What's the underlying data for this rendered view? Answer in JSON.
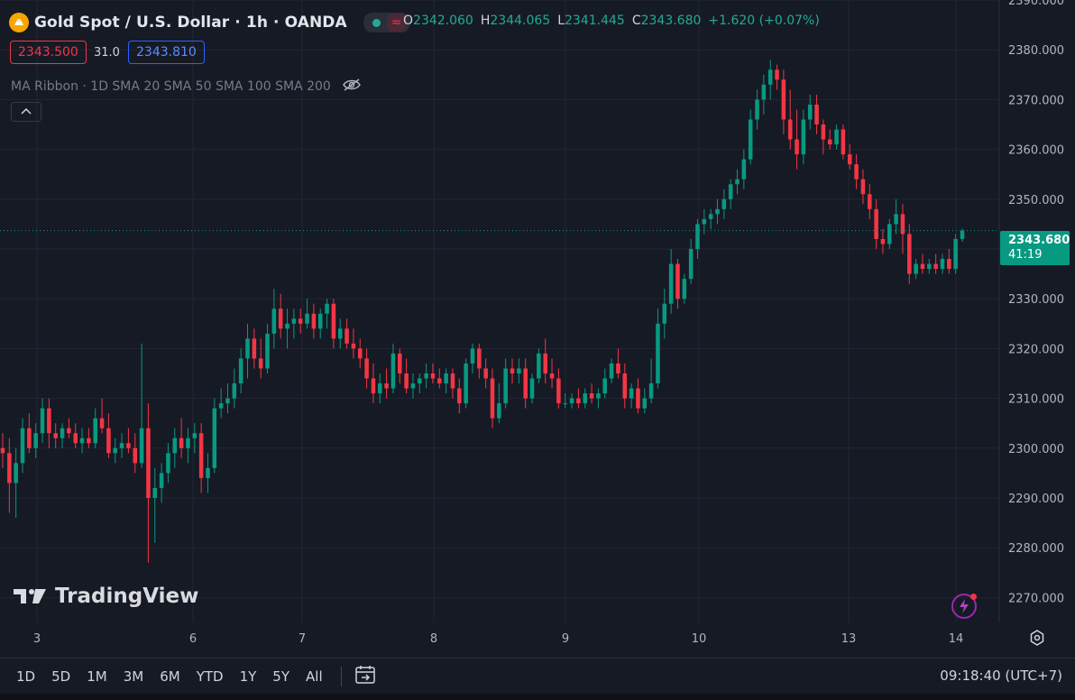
{
  "header": {
    "title": "Gold Spot / U.S. Dollar · 1h · OANDA",
    "ohlc": [
      {
        "k": "O",
        "v": "2342.060"
      },
      {
        "k": "H",
        "v": "2344.065"
      },
      {
        "k": "L",
        "v": "2341.445"
      },
      {
        "k": "C",
        "v": "2343.680"
      }
    ],
    "change": "+1.620 (+0.07%)",
    "sell_price": "2343.500",
    "spread": "31.0",
    "buy_price": "2343.810",
    "indicator": "MA Ribbon · 1D SMA 20 SMA 50 SMA 100 SMA 200"
  },
  "last_price": {
    "value": "2343.680",
    "countdown": "41:19",
    "color": "#089981"
  },
  "watermark": "TradingView",
  "toolbar": {
    "ranges": [
      "1D",
      "5D",
      "1M",
      "3M",
      "6M",
      "YTD",
      "1Y",
      "5Y",
      "All"
    ],
    "clock": "09:18:40 (UTC+7)"
  },
  "colors": {
    "up": "#089981",
    "down": "#f23645",
    "background": "#161a25",
    "grid": "#232632"
  },
  "icons": [
    "gold-coin-icon",
    "market-status-dot-icon",
    "wave-icon",
    "eye-off-icon",
    "chevron-up-icon",
    "tradingview-logo-icon",
    "lightning-icon",
    "settings-icon",
    "calendar-goto-icon"
  ],
  "chart_data": {
    "type": "candlestick",
    "y_range": [
      2265,
      2390
    ],
    "y_ticks": [
      "2270.000",
      "2280.000",
      "2290.000",
      "2300.000",
      "2310.000",
      "2320.000",
      "2330.000",
      "2340.000",
      "2350.000",
      "2360.000",
      "2370.000",
      "2380.000",
      "2390.000"
    ],
    "x_ticks": [
      "3",
      "6",
      "7",
      "8",
      "9",
      "10",
      "13",
      "14"
    ],
    "candles": [
      {
        "o": 2300,
        "h": 2303,
        "l": 2296,
        "c": 2299
      },
      {
        "o": 2299,
        "h": 2302,
        "l": 2287,
        "c": 2293
      },
      {
        "o": 2293,
        "h": 2300,
        "l": 2286,
        "c": 2297
      },
      {
        "o": 2297,
        "h": 2306,
        "l": 2295,
        "c": 2304
      },
      {
        "o": 2304,
        "h": 2307,
        "l": 2299,
        "c": 2300
      },
      {
        "o": 2300,
        "h": 2305,
        "l": 2298,
        "c": 2303
      },
      {
        "o": 2303,
        "h": 2310,
        "l": 2301,
        "c": 2308
      },
      {
        "o": 2308,
        "h": 2310,
        "l": 2300,
        "c": 2303
      },
      {
        "o": 2303,
        "h": 2305,
        "l": 2300,
        "c": 2302
      },
      {
        "o": 2302,
        "h": 2305,
        "l": 2300,
        "c": 2304
      },
      {
        "o": 2304,
        "h": 2306,
        "l": 2302,
        "c": 2303
      },
      {
        "o": 2303,
        "h": 2305,
        "l": 2300,
        "c": 2301
      },
      {
        "o": 2301,
        "h": 2304,
        "l": 2299,
        "c": 2302
      },
      {
        "o": 2302,
        "h": 2304,
        "l": 2300,
        "c": 2301
      },
      {
        "o": 2301,
        "h": 2308,
        "l": 2300,
        "c": 2306
      },
      {
        "o": 2306,
        "h": 2310,
        "l": 2303,
        "c": 2304
      },
      {
        "o": 2304,
        "h": 2307,
        "l": 2298,
        "c": 2299
      },
      {
        "o": 2299,
        "h": 2302,
        "l": 2297,
        "c": 2300
      },
      {
        "o": 2300,
        "h": 2303,
        "l": 2298,
        "c": 2301
      },
      {
        "o": 2301,
        "h": 2304,
        "l": 2299,
        "c": 2300
      },
      {
        "o": 2300,
        "h": 2303,
        "l": 2295,
        "c": 2297
      },
      {
        "o": 2297,
        "h": 2321,
        "l": 2296,
        "c": 2304
      },
      {
        "o": 2304,
        "h": 2309,
        "l": 2277,
        "c": 2290
      },
      {
        "o": 2290,
        "h": 2296,
        "l": 2281,
        "c": 2292
      },
      {
        "o": 2292,
        "h": 2297,
        "l": 2289,
        "c": 2295
      },
      {
        "o": 2295,
        "h": 2301,
        "l": 2293,
        "c": 2299
      },
      {
        "o": 2299,
        "h": 2304,
        "l": 2296,
        "c": 2302
      },
      {
        "o": 2302,
        "h": 2306,
        "l": 2298,
        "c": 2300
      },
      {
        "o": 2300,
        "h": 2304,
        "l": 2297,
        "c": 2302
      },
      {
        "o": 2302,
        "h": 2305,
        "l": 2299,
        "c": 2303
      },
      {
        "o": 2303,
        "h": 2305,
        "l": 2291,
        "c": 2294
      },
      {
        "o": 2294,
        "h": 2299,
        "l": 2291,
        "c": 2296
      },
      {
        "o": 2296,
        "h": 2310,
        "l": 2295,
        "c": 2308
      },
      {
        "o": 2308,
        "h": 2312,
        "l": 2306,
        "c": 2309
      },
      {
        "o": 2309,
        "h": 2313,
        "l": 2307,
        "c": 2310
      },
      {
        "o": 2310,
        "h": 2316,
        "l": 2308,
        "c": 2313
      },
      {
        "o": 2313,
        "h": 2320,
        "l": 2311,
        "c": 2318
      },
      {
        "o": 2318,
        "h": 2325,
        "l": 2314,
        "c": 2322
      },
      {
        "o": 2322,
        "h": 2324,
        "l": 2316,
        "c": 2318
      },
      {
        "o": 2318,
        "h": 2322,
        "l": 2314,
        "c": 2316
      },
      {
        "o": 2316,
        "h": 2325,
        "l": 2315,
        "c": 2323
      },
      {
        "o": 2323,
        "h": 2332,
        "l": 2320,
        "c": 2328
      },
      {
        "o": 2328,
        "h": 2331,
        "l": 2322,
        "c": 2324
      },
      {
        "o": 2324,
        "h": 2328,
        "l": 2320,
        "c": 2325
      },
      {
        "o": 2325,
        "h": 2328,
        "l": 2322,
        "c": 2326
      },
      {
        "o": 2326,
        "h": 2328,
        "l": 2323,
        "c": 2325
      },
      {
        "o": 2325,
        "h": 2330,
        "l": 2324,
        "c": 2327
      },
      {
        "o": 2327,
        "h": 2329,
        "l": 2322,
        "c": 2324
      },
      {
        "o": 2324,
        "h": 2328,
        "l": 2322,
        "c": 2327
      },
      {
        "o": 2327,
        "h": 2330,
        "l": 2324,
        "c": 2329
      },
      {
        "o": 2329,
        "h": 2330,
        "l": 2320,
        "c": 2322
      },
      {
        "o": 2322,
        "h": 2326,
        "l": 2320,
        "c": 2324
      },
      {
        "o": 2324,
        "h": 2326,
        "l": 2320,
        "c": 2321
      },
      {
        "o": 2321,
        "h": 2324,
        "l": 2318,
        "c": 2320
      },
      {
        "o": 2320,
        "h": 2322,
        "l": 2316,
        "c": 2318
      },
      {
        "o": 2318,
        "h": 2320,
        "l": 2312,
        "c": 2314
      },
      {
        "o": 2314,
        "h": 2317,
        "l": 2309,
        "c": 2311
      },
      {
        "o": 2311,
        "h": 2315,
        "l": 2309,
        "c": 2313
      },
      {
        "o": 2313,
        "h": 2316,
        "l": 2310,
        "c": 2312
      },
      {
        "o": 2312,
        "h": 2321,
        "l": 2311,
        "c": 2319
      },
      {
        "o": 2319,
        "h": 2320,
        "l": 2313,
        "c": 2315
      },
      {
        "o": 2315,
        "h": 2318,
        "l": 2311,
        "c": 2312
      },
      {
        "o": 2312,
        "h": 2315,
        "l": 2310,
        "c": 2313
      },
      {
        "o": 2313,
        "h": 2315,
        "l": 2311,
        "c": 2314
      },
      {
        "o": 2314,
        "h": 2317,
        "l": 2312,
        "c": 2315
      },
      {
        "o": 2315,
        "h": 2317,
        "l": 2313,
        "c": 2314
      },
      {
        "o": 2314,
        "h": 2316,
        "l": 2312,
        "c": 2313
      },
      {
        "o": 2313,
        "h": 2316,
        "l": 2311,
        "c": 2315
      },
      {
        "o": 2315,
        "h": 2316,
        "l": 2310,
        "c": 2312
      },
      {
        "o": 2312,
        "h": 2314,
        "l": 2307,
        "c": 2309
      },
      {
        "o": 2309,
        "h": 2318,
        "l": 2308,
        "c": 2317
      },
      {
        "o": 2317,
        "h": 2321,
        "l": 2315,
        "c": 2320
      },
      {
        "o": 2320,
        "h": 2321,
        "l": 2314,
        "c": 2316
      },
      {
        "o": 2316,
        "h": 2318,
        "l": 2312,
        "c": 2314
      },
      {
        "o": 2314,
        "h": 2316,
        "l": 2304,
        "c": 2306
      },
      {
        "o": 2306,
        "h": 2313,
        "l": 2305,
        "c": 2309
      },
      {
        "o": 2309,
        "h": 2318,
        "l": 2308,
        "c": 2316
      },
      {
        "o": 2316,
        "h": 2318,
        "l": 2313,
        "c": 2315
      },
      {
        "o": 2315,
        "h": 2318,
        "l": 2313,
        "c": 2316
      },
      {
        "o": 2316,
        "h": 2318,
        "l": 2308,
        "c": 2310
      },
      {
        "o": 2310,
        "h": 2315,
        "l": 2309,
        "c": 2314
      },
      {
        "o": 2314,
        "h": 2320,
        "l": 2313,
        "c": 2319
      },
      {
        "o": 2319,
        "h": 2322,
        "l": 2313,
        "c": 2315
      },
      {
        "o": 2315,
        "h": 2318,
        "l": 2312,
        "c": 2314
      },
      {
        "o": 2314,
        "h": 2316,
        "l": 2308,
        "c": 2309
      },
      {
        "o": 2309,
        "h": 2311,
        "l": 2308,
        "c": 2309
      },
      {
        "o": 2309,
        "h": 2311,
        "l": 2308,
        "c": 2310
      },
      {
        "o": 2310,
        "h": 2312,
        "l": 2308,
        "c": 2309
      },
      {
        "o": 2309,
        "h": 2312,
        "l": 2308,
        "c": 2311
      },
      {
        "o": 2311,
        "h": 2313,
        "l": 2309,
        "c": 2310
      },
      {
        "o": 2310,
        "h": 2312,
        "l": 2308,
        "c": 2311
      },
      {
        "o": 2311,
        "h": 2316,
        "l": 2310,
        "c": 2314
      },
      {
        "o": 2314,
        "h": 2318,
        "l": 2313,
        "c": 2317
      },
      {
        "o": 2317,
        "h": 2320,
        "l": 2314,
        "c": 2315
      },
      {
        "o": 2315,
        "h": 2317,
        "l": 2308,
        "c": 2310
      },
      {
        "o": 2310,
        "h": 2313,
        "l": 2308,
        "c": 2312
      },
      {
        "o": 2312,
        "h": 2314,
        "l": 2307,
        "c": 2308
      },
      {
        "o": 2308,
        "h": 2312,
        "l": 2307,
        "c": 2310
      },
      {
        "o": 2310,
        "h": 2318,
        "l": 2309,
        "c": 2313
      },
      {
        "o": 2313,
        "h": 2328,
        "l": 2312,
        "c": 2325
      },
      {
        "o": 2325,
        "h": 2332,
        "l": 2322,
        "c": 2329
      },
      {
        "o": 2329,
        "h": 2340,
        "l": 2327,
        "c": 2337
      },
      {
        "o": 2337,
        "h": 2338,
        "l": 2328,
        "c": 2330
      },
      {
        "o": 2330,
        "h": 2335,
        "l": 2329,
        "c": 2334
      },
      {
        "o": 2334,
        "h": 2342,
        "l": 2333,
        "c": 2340
      },
      {
        "o": 2340,
        "h": 2346,
        "l": 2338,
        "c": 2345
      },
      {
        "o": 2345,
        "h": 2348,
        "l": 2343,
        "c": 2346
      },
      {
        "o": 2346,
        "h": 2348,
        "l": 2344,
        "c": 2347
      },
      {
        "o": 2347,
        "h": 2350,
        "l": 2345,
        "c": 2348
      },
      {
        "o": 2348,
        "h": 2352,
        "l": 2346,
        "c": 2350
      },
      {
        "o": 2350,
        "h": 2354,
        "l": 2348,
        "c": 2353
      },
      {
        "o": 2353,
        "h": 2356,
        "l": 2351,
        "c": 2354
      },
      {
        "o": 2354,
        "h": 2360,
        "l": 2352,
        "c": 2358
      },
      {
        "o": 2358,
        "h": 2368,
        "l": 2357,
        "c": 2366
      },
      {
        "o": 2366,
        "h": 2372,
        "l": 2364,
        "c": 2370
      },
      {
        "o": 2370,
        "h": 2375,
        "l": 2367,
        "c": 2373
      },
      {
        "o": 2373,
        "h": 2378,
        "l": 2370,
        "c": 2376
      },
      {
        "o": 2376,
        "h": 2377,
        "l": 2372,
        "c": 2374
      },
      {
        "o": 2374,
        "h": 2376,
        "l": 2363,
        "c": 2366
      },
      {
        "o": 2366,
        "h": 2372,
        "l": 2360,
        "c": 2362
      },
      {
        "o": 2362,
        "h": 2368,
        "l": 2356,
        "c": 2359
      },
      {
        "o": 2359,
        "h": 2368,
        "l": 2357,
        "c": 2366
      },
      {
        "o": 2366,
        "h": 2371,
        "l": 2364,
        "c": 2369
      },
      {
        "o": 2369,
        "h": 2371,
        "l": 2363,
        "c": 2365
      },
      {
        "o": 2365,
        "h": 2366,
        "l": 2359,
        "c": 2362
      },
      {
        "o": 2362,
        "h": 2364,
        "l": 2360,
        "c": 2361
      },
      {
        "o": 2361,
        "h": 2365,
        "l": 2360,
        "c": 2364
      },
      {
        "o": 2364,
        "h": 2365,
        "l": 2358,
        "c": 2359
      },
      {
        "o": 2359,
        "h": 2361,
        "l": 2356,
        "c": 2357
      },
      {
        "o": 2357,
        "h": 2359,
        "l": 2352,
        "c": 2354
      },
      {
        "o": 2354,
        "h": 2356,
        "l": 2349,
        "c": 2351
      },
      {
        "o": 2351,
        "h": 2353,
        "l": 2346,
        "c": 2348
      },
      {
        "o": 2348,
        "h": 2350,
        "l": 2340,
        "c": 2342
      },
      {
        "o": 2342,
        "h": 2344,
        "l": 2339,
        "c": 2341
      },
      {
        "o": 2341,
        "h": 2346,
        "l": 2340,
        "c": 2345
      },
      {
        "o": 2345,
        "h": 2350,
        "l": 2343,
        "c": 2347
      },
      {
        "o": 2347,
        "h": 2349,
        "l": 2339,
        "c": 2343
      },
      {
        "o": 2343,
        "h": 2345,
        "l": 2333,
        "c": 2335
      },
      {
        "o": 2335,
        "h": 2338,
        "l": 2334,
        "c": 2337
      },
      {
        "o": 2337,
        "h": 2339,
        "l": 2335,
        "c": 2336
      },
      {
        "o": 2336,
        "h": 2338,
        "l": 2335,
        "c": 2337
      },
      {
        "o": 2337,
        "h": 2339,
        "l": 2335,
        "c": 2336
      },
      {
        "o": 2336,
        "h": 2339,
        "l": 2335,
        "c": 2338
      },
      {
        "o": 2338,
        "h": 2340,
        "l": 2335,
        "c": 2336
      },
      {
        "o": 2336,
        "h": 2343,
        "l": 2335,
        "c": 2342
      },
      {
        "o": 2342,
        "h": 2344.065,
        "l": 2341.445,
        "c": 2343.68
      }
    ]
  }
}
